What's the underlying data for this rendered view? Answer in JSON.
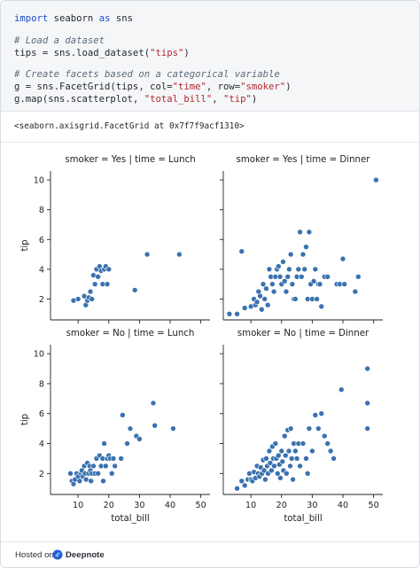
{
  "code": {
    "line1": {
      "kw1": "import",
      "mid": " seaborn ",
      "kw2": "as",
      "end": " sns"
    },
    "line2": "# Load a dataset",
    "line3": {
      "pre": "tips = sns.load_dataset(",
      "str": "\"tips\"",
      "post": ")"
    },
    "line4": "# Create facets based on a categorical variable",
    "line5": {
      "pre": "g = sns.FacetGrid(tips, col=",
      "s1": "\"time\"",
      "mid": ", row=",
      "s2": "\"smoker\"",
      "post": ")"
    },
    "line6": {
      "pre": "g.map(sns.scatterplot, ",
      "s1": "\"total_bill\"",
      "mid": ", ",
      "s2": "\"tip\"",
      "post": ")"
    }
  },
  "output": {
    "text": "<seaborn.axisgrid.FacetGrid at 0x7f7f9acf1310>"
  },
  "footer": {
    "hosted_on": "Hosted on",
    "brand": "Deepnote"
  },
  "chart_data": {
    "type": "scatter",
    "layout": "facet-grid",
    "xlabel": "total_bill",
    "ylabel": "tip",
    "xlim": [
      1,
      53
    ],
    "ylim": [
      0.6,
      10.6
    ],
    "xticks": [
      10,
      20,
      30,
      40,
      50
    ],
    "yticks": [
      2,
      4,
      6,
      8,
      10
    ],
    "point_color": "#3a72b0",
    "panels": [
      {
        "title": "smoker = Yes | time = Lunch",
        "points": [
          [
            8.5,
            1.9
          ],
          [
            10,
            2.0
          ],
          [
            12,
            2.2
          ],
          [
            12.5,
            1.6
          ],
          [
            13,
            1.9
          ],
          [
            13.5,
            2.1
          ],
          [
            14,
            2.5
          ],
          [
            14.5,
            2.0
          ],
          [
            15,
            3.6
          ],
          [
            15.5,
            3.0
          ],
          [
            16,
            4.0
          ],
          [
            16.5,
            3.5
          ],
          [
            17,
            4.2
          ],
          [
            17.5,
            3.9
          ],
          [
            18,
            3.0
          ],
          [
            18.5,
            4.0
          ],
          [
            19,
            4.2
          ],
          [
            19.5,
            3.0
          ],
          [
            20,
            4.0
          ],
          [
            28.5,
            2.6
          ],
          [
            32.5,
            5.0
          ],
          [
            43,
            5.0
          ]
        ]
      },
      {
        "title": "smoker = Yes | time = Dinner",
        "points": [
          [
            3,
            1.0
          ],
          [
            5.5,
            1.0
          ],
          [
            7,
            5.2
          ],
          [
            8,
            1.4
          ],
          [
            10,
            1.5
          ],
          [
            11,
            2.0
          ],
          [
            11.5,
            1.6
          ],
          [
            12,
            1.8
          ],
          [
            12.5,
            2.5
          ],
          [
            13,
            2.2
          ],
          [
            13.5,
            1.3
          ],
          [
            14,
            3.0
          ],
          [
            14.5,
            2.0
          ],
          [
            15,
            2.7
          ],
          [
            15.5,
            1.6
          ],
          [
            16,
            4.0
          ],
          [
            16.5,
            3.5
          ],
          [
            17,
            3.0
          ],
          [
            17.5,
            2.5
          ],
          [
            18,
            3.5
          ],
          [
            18.5,
            4.0
          ],
          [
            19,
            4.2
          ],
          [
            19.5,
            3.5
          ],
          [
            20,
            3.0
          ],
          [
            20.5,
            4.5
          ],
          [
            21,
            3.2
          ],
          [
            21.5,
            2.5
          ],
          [
            22,
            3.5
          ],
          [
            22.5,
            4.0
          ],
          [
            23,
            5.0
          ],
          [
            23.5,
            3.0
          ],
          [
            24,
            2.0
          ],
          [
            24.5,
            2.0
          ],
          [
            25,
            3.5
          ],
          [
            25.5,
            4.0
          ],
          [
            26,
            6.5
          ],
          [
            26.5,
            3.5
          ],
          [
            27,
            5.0
          ],
          [
            27.5,
            4.0
          ],
          [
            28,
            5.5
          ],
          [
            28.5,
            2.0
          ],
          [
            29,
            6.5
          ],
          [
            29.5,
            3.0
          ],
          [
            30,
            2.0
          ],
          [
            30.5,
            3.2
          ],
          [
            31,
            4.0
          ],
          [
            31.5,
            2.0
          ],
          [
            32,
            3.0
          ],
          [
            32.5,
            3.0
          ],
          [
            33,
            1.5
          ],
          [
            34,
            3.5
          ],
          [
            35,
            3.5
          ],
          [
            38,
            3.0
          ],
          [
            39,
            3.0
          ],
          [
            40,
            4.7
          ],
          [
            40.5,
            3.0
          ],
          [
            44,
            2.5
          ],
          [
            45,
            3.5
          ],
          [
            50.8,
            10.0
          ]
        ]
      },
      {
        "title": "smoker = No | time = Lunch",
        "points": [
          [
            7.5,
            2.0
          ],
          [
            8,
            1.5
          ],
          [
            8.5,
            1.3
          ],
          [
            9,
            1.6
          ],
          [
            9.5,
            2.0
          ],
          [
            10,
            1.8
          ],
          [
            10.5,
            1.5
          ],
          [
            11,
            2.0
          ],
          [
            11.2,
            2.2
          ],
          [
            11.5,
            1.8
          ],
          [
            12,
            2.5
          ],
          [
            12.3,
            2.0
          ],
          [
            12.6,
            1.6
          ],
          [
            13,
            2.7
          ],
          [
            13.4,
            2.0
          ],
          [
            13.8,
            2.5
          ],
          [
            14,
            2.2
          ],
          [
            14.2,
            1.5
          ],
          [
            14.5,
            2.0
          ],
          [
            15,
            2.5
          ],
          [
            15.5,
            2.0
          ],
          [
            16,
            3.0
          ],
          [
            16.5,
            2.0
          ],
          [
            17,
            3.2
          ],
          [
            17.5,
            2.5
          ],
          [
            18,
            3.0
          ],
          [
            18.2,
            1.5
          ],
          [
            18.5,
            4.0
          ],
          [
            19,
            2.5
          ],
          [
            19.5,
            3.0
          ],
          [
            20,
            3.2
          ],
          [
            20.5,
            3.0
          ],
          [
            21,
            2.0
          ],
          [
            21.5,
            3.0
          ],
          [
            22,
            2.5
          ],
          [
            24,
            3.0
          ],
          [
            24.5,
            5.9
          ],
          [
            26,
            4.0
          ],
          [
            27,
            5.0
          ],
          [
            29,
            4.5
          ],
          [
            30,
            4.3
          ],
          [
            34.5,
            6.7
          ],
          [
            35,
            5.2
          ],
          [
            41,
            5.0
          ]
        ]
      },
      {
        "title": "smoker = No | time = Dinner",
        "points": [
          [
            5.5,
            1.0
          ],
          [
            7,
            1.5
          ],
          [
            8,
            1.2
          ],
          [
            9,
            1.6
          ],
          [
            9.5,
            2.0
          ],
          [
            10,
            1.6
          ],
          [
            10.5,
            1.5
          ],
          [
            11,
            2.1
          ],
          [
            11.5,
            1.7
          ],
          [
            12,
            2.5
          ],
          [
            12.4,
            2.0
          ],
          [
            12.8,
            1.8
          ],
          [
            13.2,
            2.4
          ],
          [
            13.6,
            2.0
          ],
          [
            14,
            2.9
          ],
          [
            14.3,
            2.2
          ],
          [
            14.7,
            1.6
          ],
          [
            15,
            3.0
          ],
          [
            15.3,
            2.5
          ],
          [
            15.6,
            2.0
          ],
          [
            16,
            3.5
          ],
          [
            16.3,
            2.7
          ],
          [
            16.7,
            2.2
          ],
          [
            17,
            3.8
          ],
          [
            17.3,
            3.0
          ],
          [
            17.6,
            2.5
          ],
          [
            18,
            4.0
          ],
          [
            18.3,
            3.0
          ],
          [
            18.7,
            2.0
          ],
          [
            19,
            3.2
          ],
          [
            19.3,
            2.6
          ],
          [
            19.6,
            1.7
          ],
          [
            20,
            3.5
          ],
          [
            20.3,
            2.8
          ],
          [
            20.6,
            2.2
          ],
          [
            21,
            4.5
          ],
          [
            21.3,
            3.2
          ],
          [
            21.6,
            2.0
          ],
          [
            22,
            4.9
          ],
          [
            22.4,
            3.5
          ],
          [
            22.8,
            2.5
          ],
          [
            23,
            5.0
          ],
          [
            23.3,
            3.0
          ],
          [
            23.7,
            1.6
          ],
          [
            24,
            4.0
          ],
          [
            24.5,
            3.5
          ],
          [
            25,
            3.0
          ],
          [
            25.5,
            4.0
          ],
          [
            26,
            2.5
          ],
          [
            27,
            4.0
          ],
          [
            28,
            3.0
          ],
          [
            28.5,
            2.0
          ],
          [
            29,
            5.0
          ],
          [
            30,
            3.5
          ],
          [
            31,
            5.9
          ],
          [
            32,
            5.0
          ],
          [
            33,
            6.0
          ],
          [
            34,
            4.5
          ],
          [
            35,
            4.0
          ],
          [
            36,
            3.5
          ],
          [
            37,
            3.0
          ],
          [
            39.5,
            7.6
          ],
          [
            48,
            9.0
          ],
          [
            48,
            6.7
          ],
          [
            48,
            5.0
          ]
        ]
      }
    ]
  }
}
